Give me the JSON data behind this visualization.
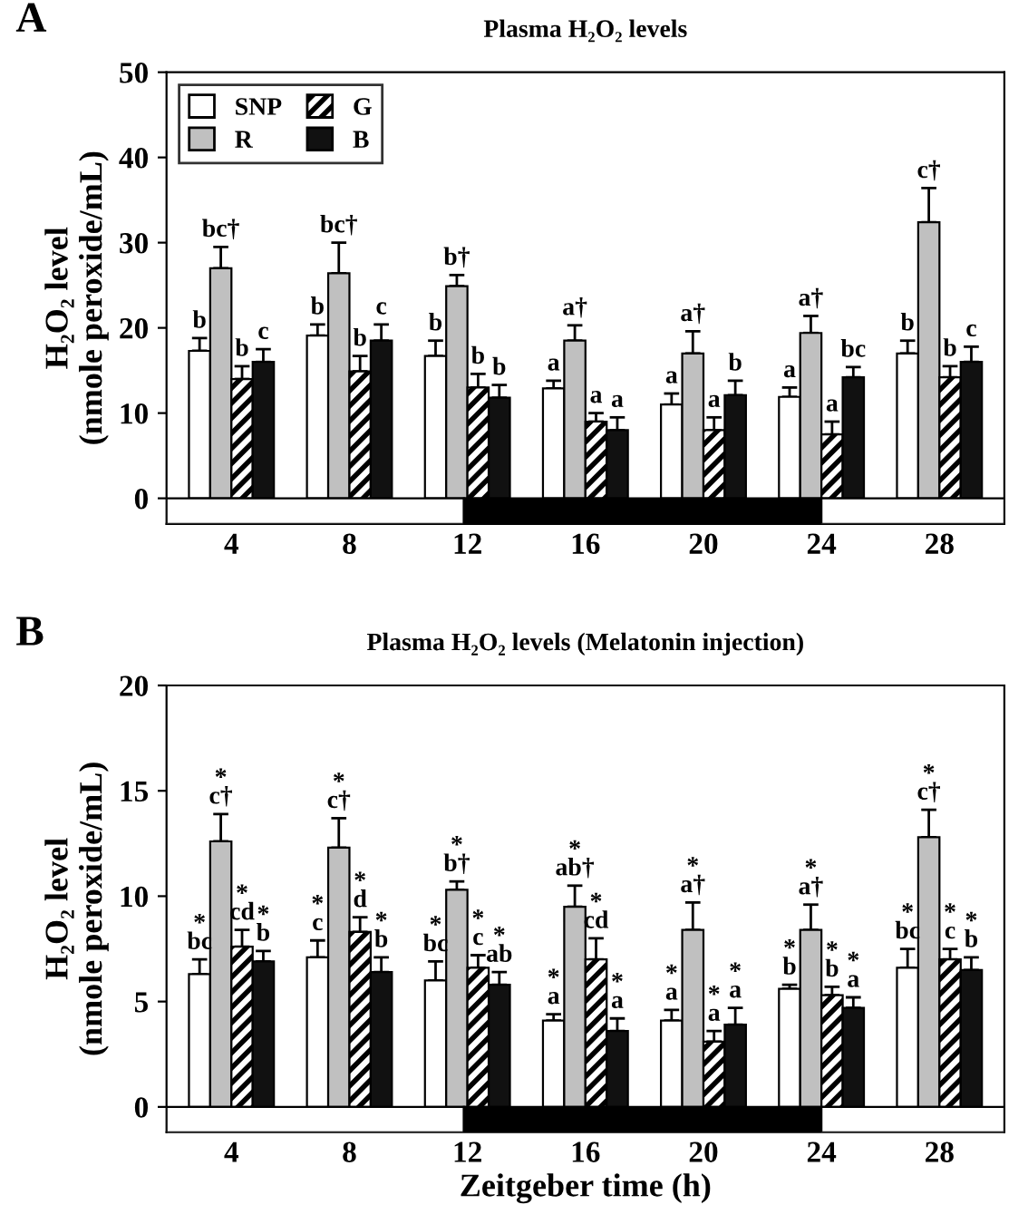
{
  "chart_data": [
    {
      "type": "bar",
      "title": "Plasma H₂O₂ levels",
      "ylabel": "H₂O₂ level\n(nmole peroxide/mL)",
      "annotations": [
        "A"
      ],
      "categories": [
        "4",
        "8",
        "12",
        "16",
        "20",
        "24",
        "28"
      ],
      "ylim": [
        -3,
        50
      ],
      "yticks": [
        0,
        10,
        20,
        30,
        40,
        50
      ],
      "legend": "top left",
      "grid": false,
      "series": [
        {
          "name": "SNP",
          "color": "#ffffff",
          "values": [
            17.3,
            19.1,
            16.7,
            12.9,
            11.0,
            11.9,
            17.0
          ],
          "errors": [
            1.5,
            1.3,
            1.8,
            0.9,
            1.3,
            1.1,
            1.5
          ],
          "value_labels": [
            "b",
            "b",
            "b",
            "a",
            "a",
            "a",
            "b"
          ]
        },
        {
          "name": "R",
          "color": "#c0c0c0",
          "values": [
            27.0,
            26.4,
            24.9,
            18.5,
            17.0,
            19.4,
            32.4
          ],
          "errors": [
            2.5,
            3.6,
            1.3,
            1.8,
            2.6,
            2.0,
            4.0
          ],
          "value_labels": [
            "bc†",
            "bc†",
            "b†",
            "a†",
            "a†",
            "a†",
            "c†"
          ]
        },
        {
          "name": "G",
          "color": "#000000",
          "values": [
            14.0,
            14.9,
            13.0,
            9.0,
            8.0,
            7.5,
            14.2
          ],
          "errors": [
            1.5,
            1.8,
            1.6,
            1.0,
            1.5,
            1.5,
            1.3
          ],
          "value_labels": [
            "b",
            "b",
            "b",
            "a",
            "a",
            "a",
            "b"
          ]
        },
        {
          "name": "B",
          "color": "#111111",
          "values": [
            16.0,
            18.5,
            11.8,
            8.0,
            12.1,
            14.2,
            16.0
          ],
          "errors": [
            1.5,
            1.9,
            1.5,
            1.5,
            1.7,
            1.2,
            1.8
          ],
          "value_labels": [
            "c",
            "c",
            "b",
            "a",
            "b",
            "bc",
            "c"
          ]
        }
      ]
    },
    {
      "type": "bar",
      "title": "Plasma H₂O₂ levels (Melatonin injection)",
      "ylabel": "H₂O₂ level\n(nmole peroxide/mL)",
      "xlabel": "Zeitgeber time (h)",
      "annotations": [
        "B"
      ],
      "categories": [
        "4",
        "8",
        "12",
        "16",
        "20",
        "24",
        "28"
      ],
      "ylim": [
        -1.2,
        20
      ],
      "yticks": [
        0,
        5,
        10,
        15,
        20
      ],
      "grid": false,
      "series": [
        {
          "color": "#ffffff",
          "values": [
            6.3,
            7.1,
            6.0,
            4.1,
            4.1,
            5.6,
            6.6
          ],
          "errors": [
            0.7,
            0.8,
            0.9,
            0.3,
            0.5,
            0.2,
            0.9
          ],
          "value_labels": [
            "*\nbc",
            "*\nc",
            "*\nbc",
            "*\na",
            "*\na",
            "*\nb",
            "*\nbc"
          ]
        },
        {
          "color": "#c0c0c0",
          "values": [
            12.6,
            12.3,
            10.3,
            9.5,
            8.4,
            8.4,
            12.8
          ],
          "errors": [
            1.3,
            1.4,
            0.4,
            1.0,
            1.3,
            1.2,
            1.3
          ],
          "value_labels": [
            "*\nc†",
            "*\nc†",
            "*\nb†",
            "*\nab†",
            "*\na†",
            "*\na†",
            "*\nc†"
          ]
        },
        {
          "color": "#000000",
          "values": [
            7.6,
            8.3,
            6.6,
            7.0,
            3.1,
            5.3,
            7.0
          ],
          "errors": [
            0.8,
            0.7,
            0.6,
            1.0,
            0.5,
            0.4,
            0.5
          ],
          "value_labels": [
            "*\ncd",
            "*\nd",
            "*\nc",
            "*\ncd",
            "*\na",
            "*\nb",
            "*\nc"
          ]
        },
        {
          "color": "#111111",
          "values": [
            6.9,
            6.4,
            5.8,
            3.6,
            3.9,
            4.7,
            6.5
          ],
          "errors": [
            0.5,
            0.7,
            0.6,
            0.6,
            0.8,
            0.5,
            0.6
          ],
          "value_labels": [
            "*\nb",
            "*\nb",
            "*\nab",
            "*\na",
            "*\na",
            "*\na",
            "*\nb"
          ]
        }
      ]
    }
  ]
}
